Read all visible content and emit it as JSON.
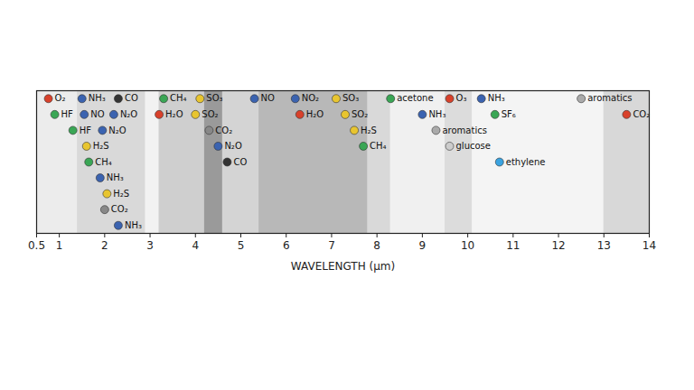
{
  "chart_data": {
    "type": "scatter",
    "x_label": "WAVELENGTH (µm)",
    "xlim": [
      0.5,
      14
    ],
    "xticks": [
      0.5,
      1,
      2,
      3,
      4,
      5,
      6,
      7,
      8,
      9,
      10,
      11,
      12,
      13,
      14
    ],
    "tick_labels": "x",
    "grid": false,
    "labels": [
      "O₂",
      "HF",
      "HF",
      "NH₃",
      "NO",
      "H₂S",
      "CH₄",
      "N₂O",
      "NH₃",
      "H₂S",
      "CO₂",
      "N₂O",
      "CO",
      "NH₃",
      "CH₄",
      "H₂O",
      "SO₂",
      "SO₃",
      "CO₂",
      "N₂O",
      "CO",
      "NO",
      "NO₂",
      "H₂O",
      "SO₃",
      "SO₂",
      "H₂S",
      "CH₄",
      "acetone",
      "NH₃",
      "aromatics",
      "O₃",
      "glucose",
      "NH₃",
      "SF₆",
      "ethylene",
      "aromatics",
      "CO₂"
    ],
    "x": [
      0.76,
      0.9,
      1.3,
      1.5,
      1.55,
      1.6,
      1.65,
      1.95,
      1.9,
      2.05,
      2.0,
      2.2,
      2.3,
      2.3,
      3.3,
      3.2,
      4.0,
      4.1,
      4.3,
      4.5,
      4.7,
      5.3,
      6.2,
      6.3,
      7.1,
      7.3,
      7.5,
      7.7,
      8.3,
      9.0,
      9.3,
      9.6,
      9.6,
      10.3,
      10.6,
      10.7,
      12.5,
      13.5
    ],
    "colors": [
      "#d8412b",
      "#3aa655",
      "#3aa655",
      "#3b63b0",
      "#3b63b0",
      "#e8c530",
      "#3aa655",
      "#3b63b0",
      "#3b63b0",
      "#e8c530",
      "#888888",
      "#3b63b0",
      "#333333",
      "#3b63b0",
      "#3aa655",
      "#d8412b",
      "#e8c530",
      "#e8c530",
      "#888888",
      "#3b63b0",
      "#333333",
      "#3b63b0",
      "#3b63b0",
      "#d8412b",
      "#e8c530",
      "#e8c530",
      "#e8c530",
      "#3aa655",
      "#3aa655",
      "#3b63b0",
      "#aaaaaa",
      "#d8412b",
      "#cccccc",
      "#3b63b0",
      "#3aa655",
      "#3aa3e0",
      "#aaaaaa",
      "#d8412b"
    ],
    "bands": [
      {
        "x0": 0.5,
        "x1": 1.4,
        "color": "#ececec"
      },
      {
        "x0": 1.4,
        "x1": 2.9,
        "color": "#d9d9d9"
      },
      {
        "x0": 2.9,
        "x1": 3.2,
        "color": "#f2f2f2"
      },
      {
        "x0": 3.2,
        "x1": 4.2,
        "color": "#cfcfcf"
      },
      {
        "x0": 4.2,
        "x1": 4.6,
        "color": "#9a9a9a"
      },
      {
        "x0": 4.6,
        "x1": 5.4,
        "color": "#d4d4d4"
      },
      {
        "x0": 5.4,
        "x1": 7.8,
        "color": "#b8b8b8"
      },
      {
        "x0": 7.8,
        "x1": 8.3,
        "color": "#d9d9d9"
      },
      {
        "x0": 8.3,
        "x1": 9.5,
        "color": "#f0f0f0"
      },
      {
        "x0": 9.5,
        "x1": 10.1,
        "color": "#dcdcdc"
      },
      {
        "x0": 10.1,
        "x1": 13,
        "color": "#f4f4f4"
      },
      {
        "x0": 13,
        "x1": 14,
        "color": "#d8d8d8"
      }
    ]
  }
}
